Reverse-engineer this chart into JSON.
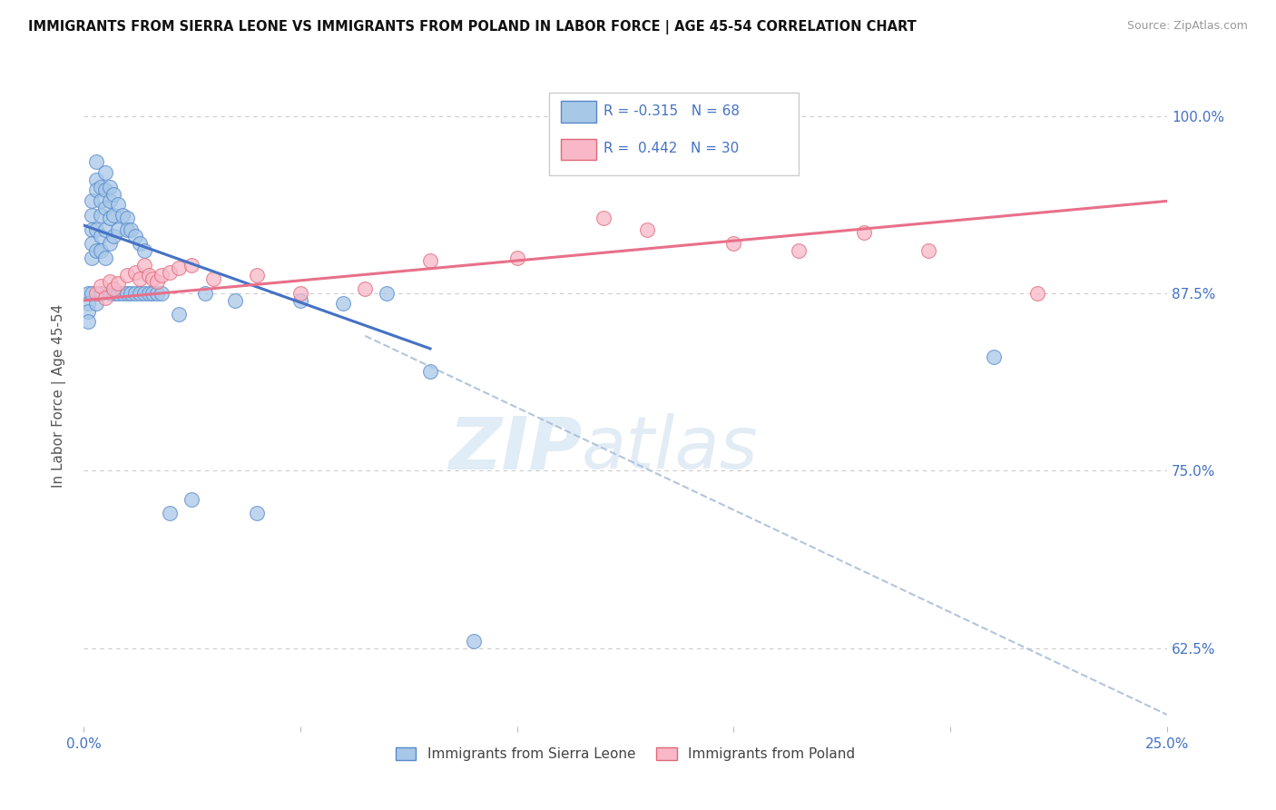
{
  "title": "IMMIGRANTS FROM SIERRA LEONE VS IMMIGRANTS FROM POLAND IN LABOR FORCE | AGE 45-54 CORRELATION CHART",
  "source": "Source: ZipAtlas.com",
  "ylabel": "In Labor Force | Age 45-54",
  "ytick_pos": [
    0.625,
    0.75,
    0.875,
    1.0
  ],
  "ytick_labels": [
    "62.5%",
    "75.0%",
    "87.5%",
    "100.0%"
  ],
  "xlim": [
    0.0,
    0.25
  ],
  "ylim": [
    0.57,
    1.035
  ],
  "legend_text1": "R = -0.315   N = 68",
  "legend_text2": "R =  0.442   N = 30",
  "color_blue_fill": "#a8c8e8",
  "color_blue_edge": "#5588cc",
  "color_pink_fill": "#f8b8c8",
  "color_pink_edge": "#e06878",
  "color_blue_line": "#4472C4",
  "color_pink_line": "#e8708a",
  "color_dashed": "#aabfd8",
  "blue_line_x": [
    0.0,
    0.08
  ],
  "blue_line_y": [
    0.923,
    0.836
  ],
  "dashed_line_x": [
    0.065,
    0.25
  ],
  "dashed_line_y": [
    0.845,
    0.578
  ],
  "pink_line_x": [
    0.0,
    0.25
  ],
  "pink_line_y": [
    0.87,
    0.94
  ],
  "blue_x": [
    0.001,
    0.001,
    0.001,
    0.001,
    0.002,
    0.002,
    0.002,
    0.002,
    0.002,
    0.002,
    0.003,
    0.003,
    0.003,
    0.003,
    0.003,
    0.003,
    0.004,
    0.004,
    0.004,
    0.004,
    0.004,
    0.004,
    0.005,
    0.005,
    0.005,
    0.005,
    0.005,
    0.006,
    0.006,
    0.006,
    0.006,
    0.006,
    0.007,
    0.007,
    0.007,
    0.007,
    0.008,
    0.008,
    0.008,
    0.009,
    0.009,
    0.01,
    0.01,
    0.01,
    0.011,
    0.011,
    0.012,
    0.012,
    0.013,
    0.013,
    0.014,
    0.014,
    0.015,
    0.016,
    0.017,
    0.018,
    0.02,
    0.022,
    0.025,
    0.028,
    0.035,
    0.04,
    0.05,
    0.06,
    0.07,
    0.08,
    0.09,
    0.21
  ],
  "blue_y": [
    0.875,
    0.868,
    0.862,
    0.855,
    0.94,
    0.93,
    0.92,
    0.91,
    0.9,
    0.875,
    0.968,
    0.955,
    0.948,
    0.92,
    0.905,
    0.868,
    0.95,
    0.94,
    0.93,
    0.915,
    0.905,
    0.875,
    0.96,
    0.948,
    0.935,
    0.92,
    0.9,
    0.95,
    0.94,
    0.928,
    0.91,
    0.875,
    0.945,
    0.93,
    0.915,
    0.875,
    0.938,
    0.92,
    0.875,
    0.93,
    0.875,
    0.928,
    0.92,
    0.875,
    0.92,
    0.875,
    0.915,
    0.875,
    0.91,
    0.875,
    0.905,
    0.875,
    0.875,
    0.875,
    0.875,
    0.875,
    0.72,
    0.86,
    0.73,
    0.875,
    0.87,
    0.72,
    0.87,
    0.868,
    0.875,
    0.82,
    0.63,
    0.83
  ],
  "pink_x": [
    0.003,
    0.004,
    0.005,
    0.006,
    0.007,
    0.008,
    0.01,
    0.012,
    0.013,
    0.014,
    0.015,
    0.016,
    0.017,
    0.018,
    0.02,
    0.022,
    0.025,
    0.03,
    0.04,
    0.05,
    0.065,
    0.08,
    0.1,
    0.12,
    0.13,
    0.15,
    0.165,
    0.18,
    0.195,
    0.22
  ],
  "pink_y": [
    0.875,
    0.88,
    0.872,
    0.883,
    0.878,
    0.882,
    0.888,
    0.89,
    0.885,
    0.895,
    0.888,
    0.885,
    0.883,
    0.888,
    0.89,
    0.893,
    0.895,
    0.885,
    0.888,
    0.875,
    0.878,
    0.898,
    0.9,
    0.928,
    0.92,
    0.91,
    0.905,
    0.918,
    0.905,
    0.875
  ]
}
